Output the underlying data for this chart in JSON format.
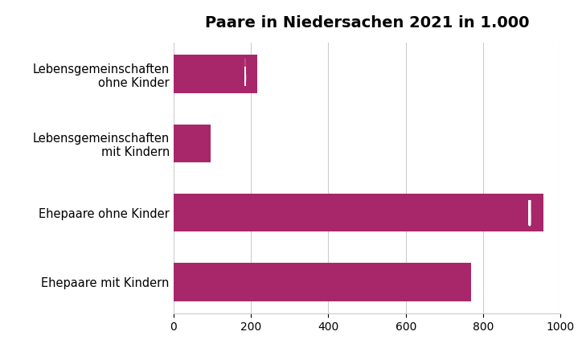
{
  "title": "Paare in Niedersachen 2021 in 1.000",
  "categories": [
    "Lebensgemeinschaften\nohne Kinder",
    "Lebensgemeinschaften\nmit Kindern",
    "Ehepaare ohne Kinder",
    "Ehepaare mit Kindern"
  ],
  "values": [
    216,
    96,
    955,
    769
  ],
  "bar_color": "#A8276A",
  "background_color": "#ffffff",
  "xlim": [
    0,
    1000
  ],
  "xticks": [
    0,
    200,
    400,
    600,
    800,
    1000
  ],
  "grid_color": "#cccccc",
  "title_fontsize": 14,
  "label_fontsize": 10.5,
  "tick_fontsize": 10
}
